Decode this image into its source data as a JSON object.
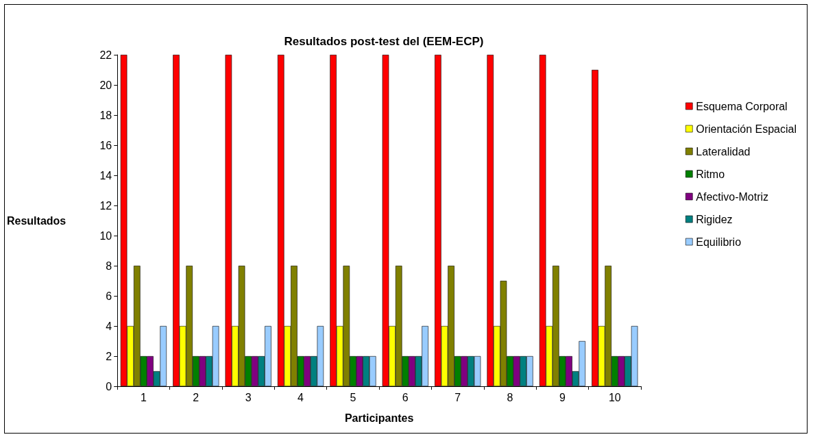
{
  "chart_data": {
    "type": "bar",
    "title": "Resultados post-test del (EEM-ECP)",
    "xlabel": "Participantes",
    "ylabel": "Resultados",
    "categories": [
      "1",
      "2",
      "3",
      "4",
      "5",
      "6",
      "7",
      "8",
      "9",
      "10"
    ],
    "series": [
      {
        "name": "Esquema Corporal",
        "color": "#ff0000",
        "values": [
          22,
          22,
          22,
          22,
          22,
          22,
          22,
          22,
          22,
          21
        ]
      },
      {
        "name": "Orientación Espacial",
        "color": "#ffff00",
        "values": [
          4,
          4,
          4,
          4,
          4,
          4,
          4,
          4,
          4,
          4
        ]
      },
      {
        "name": "Lateralidad",
        "color": "#808000",
        "values": [
          8,
          8,
          8,
          8,
          8,
          8,
          8,
          7,
          8,
          8
        ]
      },
      {
        "name": "Ritmo",
        "color": "#008000",
        "values": [
          2,
          2,
          2,
          2,
          2,
          2,
          2,
          2,
          2,
          2
        ]
      },
      {
        "name": "Afectivo-Motriz",
        "color": "#800080",
        "values": [
          2,
          2,
          2,
          2,
          2,
          2,
          2,
          2,
          2,
          2
        ]
      },
      {
        "name": "Rigidez",
        "color": "#008080",
        "values": [
          1,
          2,
          2,
          2,
          2,
          2,
          2,
          2,
          1,
          2
        ]
      },
      {
        "name": "Equilibrio",
        "color": "#99ccff",
        "values": [
          4,
          4,
          4,
          4,
          2,
          4,
          2,
          2,
          3,
          4
        ]
      }
    ],
    "ylim": [
      0,
      22
    ],
    "yticks": [
      0,
      2,
      4,
      6,
      8,
      10,
      12,
      14,
      16,
      18,
      20,
      22
    ],
    "grid": false,
    "legend": "right"
  }
}
